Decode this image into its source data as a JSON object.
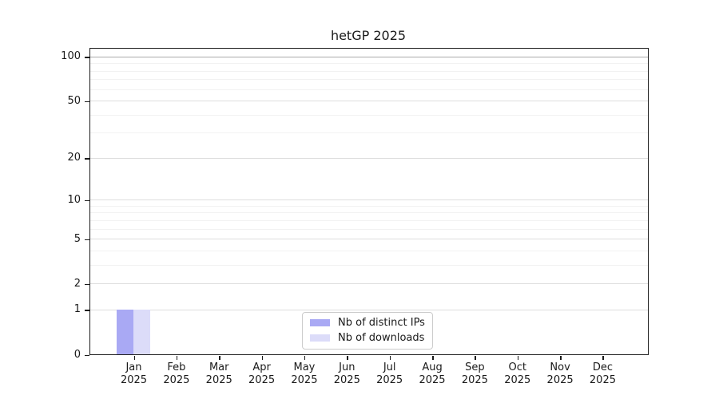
{
  "chart_data": {
    "type": "bar",
    "title": "hetGP 2025",
    "categories": [
      "Jan 2025",
      "Feb 2025",
      "Mar 2025",
      "Apr 2025",
      "May 2025",
      "Jun 2025",
      "Jul 2025",
      "Aug 2025",
      "Sep 2025",
      "Oct 2025",
      "Nov 2025",
      "Dec 2025"
    ],
    "series": [
      {
        "name": "Nb of distinct IPs",
        "color": "#a9a9f4",
        "values": [
          1,
          0,
          0,
          0,
          0,
          0,
          0,
          0,
          0,
          0,
          0,
          0
        ]
      },
      {
        "name": "Nb of downloads",
        "color": "#dcdcf9",
        "values": [
          1,
          0,
          0,
          0,
          0,
          0,
          0,
          0,
          0,
          0,
          0,
          0
        ]
      }
    ],
    "xlabel": "",
    "ylabel": "",
    "yscale": "log1p",
    "ylim": [
      0,
      113
    ],
    "yticks_major": [
      0,
      1,
      2,
      5,
      10,
      20,
      50,
      100
    ],
    "yticks_minor": [
      3,
      4,
      6,
      7,
      8,
      9,
      30,
      40,
      60,
      70,
      80,
      90
    ],
    "grid": "horizontal",
    "legend_position": "bottom-center"
  },
  "colors": {
    "grid_major": "#dedede",
    "grid_minor": "#f2f2f2",
    "grid_top": "#ababab",
    "axis": "#1a1a1a",
    "background": "#ffffff"
  }
}
